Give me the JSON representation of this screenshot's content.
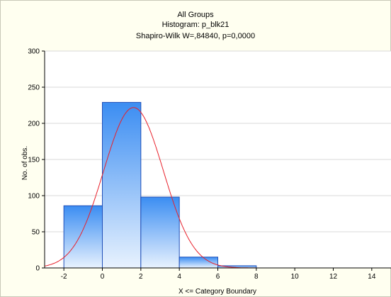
{
  "chart_data": {
    "type": "bar",
    "title": "All Groups",
    "subtitle": "Histogram: p_blk21",
    "subtitle2": "Shapiro-Wilk W=,84840, p=0,0000",
    "xlabel": "X <= Category Boundary",
    "ylabel": "No. of obs.",
    "bins": [
      {
        "from": -2,
        "to": 0,
        "value": 86
      },
      {
        "from": 0,
        "to": 2,
        "value": 229
      },
      {
        "from": 2,
        "to": 4,
        "value": 98
      },
      {
        "from": 4,
        "to": 6,
        "value": 15
      },
      {
        "from": 6,
        "to": 8,
        "value": 3
      }
    ],
    "xlim": [
      -3,
      15
    ],
    "ylim": [
      0,
      300
    ],
    "xticks": [
      "-2",
      "0",
      "2",
      "4",
      "6",
      "8",
      "10",
      "12",
      "14"
    ],
    "yticks": [
      "0",
      "50",
      "100",
      "150",
      "200",
      "250",
      "300"
    ],
    "grid": true,
    "fitted_curve": {
      "type": "normal",
      "mean": 1.62,
      "sd": 1.55,
      "n": 431,
      "bin_width": 2,
      "color": "#e8202a"
    },
    "colors": {
      "bar_top": "#3b8df2",
      "bar_bottom": "#e8f2fe",
      "bar_edge": "#1f4fb8",
      "plot_bg": "#ffffff",
      "figure_bg": "#fffff0"
    }
  }
}
